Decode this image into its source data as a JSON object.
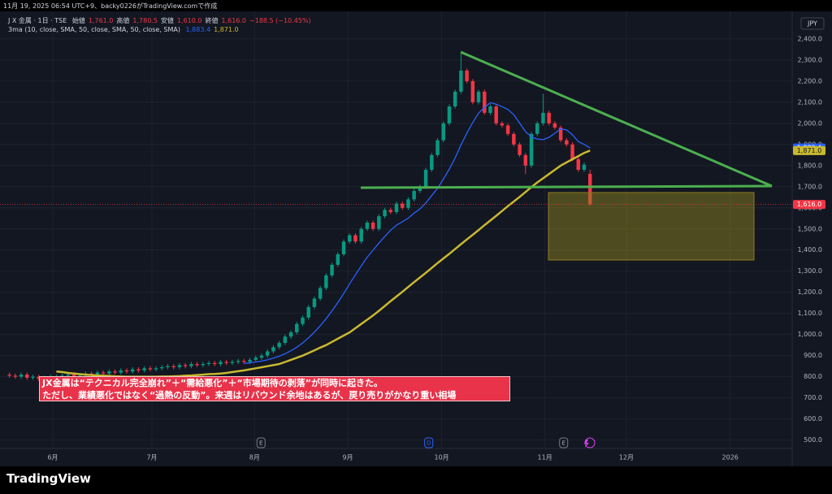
{
  "header": {
    "caption": "11月 19, 2025 06:54 UTC+9、backy0226がTradingView.comで作成"
  },
  "chart_data": {
    "type": "candlestick",
    "symbol": "J X 金属 · 1日 · TSE",
    "ohlc_legend": [
      {
        "label": "始値",
        "value": "1,761.0"
      },
      {
        "label": "高値",
        "value": "1,780.5"
      },
      {
        "label": "安値",
        "value": "1,610.0"
      },
      {
        "label": "終値",
        "value": "1,616.0"
      }
    ],
    "change": "−188.5 (−10.45%)",
    "indicator": "3ma (10, close, SMA, 50, close, SMA, 50, close, SMA)",
    "currency": "JPY",
    "up_color": "#089981",
    "down_color": "#f23645",
    "close_label": "1,616.0",
    "open": [
      810,
      805,
      800,
      810,
      795,
      800,
      790,
      795,
      800,
      800,
      805,
      810,
      800,
      805,
      815,
      810,
      820,
      815,
      825,
      820,
      830,
      825,
      835,
      830,
      840,
      835,
      840,
      845,
      850,
      845,
      855,
      850,
      860,
      855,
      860,
      865,
      860,
      870,
      865,
      870,
      875,
      870,
      880,
      890,
      900,
      920,
      940,
      960,
      990,
      1010,
      1050,
      1080,
      1130,
      1170,
      1220,
      1280,
      1330,
      1380,
      1440,
      1470,
      1440,
      1500,
      1530,
      1500,
      1560,
      1590,
      1580,
      1620,
      1600,
      1640,
      1680,
      1700,
      1780,
      1850,
      1920,
      2000,
      2080,
      2150,
      2250,
      2200,
      2100,
      2150,
      2050,
      2080,
      2000,
      1990,
      1950,
      1900,
      1850,
      1800,
      1950,
      2000,
      2050,
      2000,
      1980,
      1920,
      1900,
      1830,
      1780,
      1761
    ],
    "high": [
      820,
      815,
      820,
      820,
      810,
      810,
      805,
      810,
      810,
      815,
      820,
      820,
      815,
      825,
      825,
      830,
      830,
      835,
      835,
      840,
      840,
      845,
      845,
      850,
      850,
      850,
      855,
      860,
      860,
      865,
      865,
      870,
      870,
      870,
      875,
      875,
      880,
      880,
      880,
      885,
      885,
      890,
      900,
      910,
      930,
      950,
      970,
      1000,
      1020,
      1060,
      1090,
      1140,
      1180,
      1230,
      1290,
      1340,
      1390,
      1450,
      1480,
      1480,
      1510,
      1540,
      1540,
      1570,
      1600,
      1600,
      1630,
      1630,
      1650,
      1690,
      1710,
      1790,
      1860,
      1930,
      2010,
      2090,
      2160,
      2330,
      2260,
      2210,
      2160,
      2160,
      2090,
      2090,
      2010,
      2000,
      1960,
      1910,
      1860,
      1960,
      2010,
      2140,
      2060,
      2010,
      1990,
      1930,
      1910,
      1840,
      1815,
      1780.5
    ],
    "low": [
      795,
      790,
      790,
      785,
      785,
      780,
      780,
      785,
      790,
      790,
      795,
      790,
      790,
      795,
      800,
      800,
      805,
      805,
      810,
      810,
      815,
      815,
      820,
      820,
      825,
      825,
      830,
      835,
      835,
      835,
      840,
      840,
      845,
      845,
      850,
      850,
      850,
      855,
      855,
      860,
      860,
      860,
      870,
      880,
      890,
      910,
      930,
      950,
      980,
      1000,
      1040,
      1070,
      1120,
      1160,
      1210,
      1270,
      1320,
      1370,
      1430,
      1430,
      1430,
      1490,
      1490,
      1490,
      1550,
      1570,
      1570,
      1590,
      1590,
      1630,
      1670,
      1690,
      1770,
      1840,
      1910,
      1990,
      2070,
      2140,
      2190,
      2090,
      2090,
      2040,
      2040,
      1990,
      1980,
      1940,
      1890,
      1840,
      1760,
      1790,
      1940,
      1990,
      1990,
      1970,
      1910,
      1890,
      1820,
      1770,
      1770,
      1610
    ],
    "close": [
      805,
      800,
      810,
      795,
      800,
      790,
      795,
      800,
      800,
      805,
      810,
      800,
      805,
      815,
      810,
      820,
      815,
      825,
      820,
      830,
      825,
      835,
      830,
      840,
      835,
      840,
      845,
      850,
      845,
      855,
      850,
      860,
      855,
      860,
      865,
      860,
      870,
      865,
      870,
      875,
      870,
      880,
      890,
      900,
      920,
      940,
      960,
      990,
      1010,
      1050,
      1080,
      1130,
      1170,
      1220,
      1280,
      1330,
      1380,
      1440,
      1470,
      1440,
      1500,
      1530,
      1500,
      1560,
      1590,
      1580,
      1620,
      1600,
      1640,
      1680,
      1700,
      1780,
      1850,
      1920,
      2000,
      2080,
      2150,
      2250,
      2200,
      2100,
      2150,
      2050,
      2080,
      2000,
      1990,
      1950,
      1900,
      1850,
      1800,
      1950,
      2000,
      2050,
      2000,
      1980,
      1920,
      1900,
      1830,
      1780,
      1804.5,
      1616
    ],
    "series": [
      {
        "color": "#2962ff",
        "last_label": "1,883.4",
        "values": [
          null,
          null,
          null,
          null,
          null,
          null,
          null,
          null,
          null,
          null,
          null,
          null,
          null,
          null,
          null,
          null,
          null,
          null,
          null,
          null,
          null,
          null,
          null,
          null,
          null,
          null,
          null,
          null,
          null,
          null,
          null,
          null,
          null,
          null,
          null,
          null,
          null,
          null,
          null,
          null,
          862,
          866,
          870,
          874,
          880,
          888,
          897,
          909,
          923,
          940,
          960,
          984,
          1011,
          1041,
          1075,
          1112,
          1151,
          1194,
          1240,
          1283,
          1325,
          1366,
          1399,
          1433,
          1464,
          1494,
          1518,
          1534,
          1551,
          1575,
          1595,
          1623,
          1658,
          1692,
          1736,
          1784,
          1836,
          1898,
          1954,
          2004,
          2049,
          2076,
          2098,
          2091,
          2079,
          2066,
          2041,
          2001,
          1961,
          1936,
          1926,
          1923,
          1934,
          1953,
          1974,
          1969,
          1946,
          1914,
          1900,
          1883.4
        ]
      },
      {
        "color": "#c9b92f",
        "last_label": "1,871.0",
        "values": [
          null,
          null,
          null,
          null,
          null,
          null,
          null,
          null,
          825,
          822,
          818,
          815,
          812,
          810,
          808,
          806,
          805,
          804,
          802,
          801,
          800,
          800,
          800,
          800,
          800,
          800,
          801,
          801,
          802,
          803,
          805,
          806,
          808,
          810,
          812,
          813,
          815,
          818,
          822,
          826,
          830,
          835,
          840,
          845,
          850,
          855,
          860,
          870,
          880,
          890,
          900,
          912,
          925,
          938,
          950,
          965,
          980,
          995,
          1010,
          1030,
          1050,
          1070,
          1090,
          1112,
          1135,
          1158,
          1180,
          1202,
          1225,
          1248,
          1270,
          1292,
          1315,
          1338,
          1360,
          1382,
          1405,
          1428,
          1450,
          1472,
          1495,
          1518,
          1540,
          1562,
          1585,
          1608,
          1630,
          1652,
          1675,
          1698,
          1720,
          1740,
          1760,
          1780,
          1800,
          1815,
          1830,
          1845,
          1860,
          1871
        ]
      }
    ],
    "ylim": [
      460,
      2515
    ],
    "yticks": [
      {
        "value": 500,
        "label": "500.0"
      },
      {
        "value": 600,
        "label": "600.0"
      },
      {
        "value": 700,
        "label": "700.0"
      },
      {
        "value": 800,
        "label": "800.0"
      },
      {
        "value": 900,
        "label": "900.0"
      },
      {
        "value": 1000,
        "label": "1,000.0"
      },
      {
        "value": 1100,
        "label": "1,100.0"
      },
      {
        "value": 1200,
        "label": "1,200.0"
      },
      {
        "value": 1300,
        "label": "1,300.0"
      },
      {
        "value": 1400,
        "label": "1,400.0"
      },
      {
        "value": 1500,
        "label": "1,500.0"
      },
      {
        "value": 1600,
        "label": "1,600.0"
      },
      {
        "value": 1700,
        "label": "1,700.0"
      },
      {
        "value": 1800,
        "label": "1,800.0"
      },
      {
        "value": 1900,
        "label": "1,900.0"
      },
      {
        "value": 2000,
        "label": "2,000.0"
      },
      {
        "value": 2100,
        "label": "2,100.0"
      },
      {
        "value": 2200,
        "label": "2,200.0"
      },
      {
        "value": 2300,
        "label": "2,300.0"
      },
      {
        "value": 2400,
        "label": "2,400.0"
      }
    ],
    "xlim": [
      0,
      133
    ],
    "xticks": [
      {
        "value": 7.9,
        "label": "6月"
      },
      {
        "value": 24.8,
        "label": "7月"
      },
      {
        "value": 42.3,
        "label": "8月"
      },
      {
        "value": 58.2,
        "label": "9月"
      },
      {
        "value": 74.2,
        "label": "10月"
      },
      {
        "value": 91.8,
        "label": "11月"
      },
      {
        "value": 105.7,
        "label": "12月"
      },
      {
        "value": 123.4,
        "label": "2026"
      }
    ],
    "events": [
      {
        "value": 43.4,
        "label": "E"
      },
      {
        "value": 72,
        "label": "D"
      },
      {
        "value": 95,
        "label": "E"
      }
    ],
    "annotation": [
      "JX金属は“テクニカル完全崩れ”＋“需給悪化”＋“市場期待の剥落”が同時に起きた。",
      "ただし、業績悪化ではなく“過熱の反動”。来週はリバウンド余地はあるが、戻り売りがかなり重い相場"
    ]
  },
  "footer": {
    "brand": "TradingView"
  }
}
